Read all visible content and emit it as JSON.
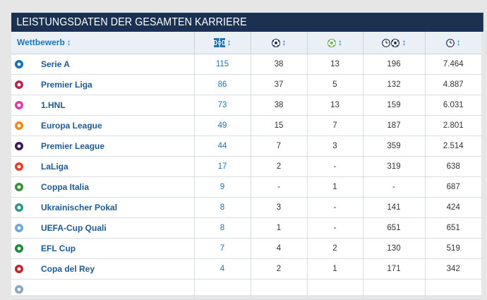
{
  "title": "LEISTUNGSDATEN DER GESAMTEN KARRIERE",
  "header": {
    "competition_label": "Wettbewerb",
    "sort_glyph": "↕",
    "icons": [
      "appearances-icon",
      "goals-icon",
      "assists-icon",
      "minutes-per-goal-icon",
      "minutes-played-icon"
    ]
  },
  "rows": [
    {
      "competition": "Serie A",
      "logo": "serie-a-logo",
      "color": "#1b6fb5",
      "apps": "115",
      "goals": "38",
      "assists": "13",
      "min_per_goal": "196",
      "minutes": "7.464"
    },
    {
      "competition": "Premier Liga",
      "logo": "premier-liga-logo",
      "color": "#b6274e",
      "apps": "86",
      "goals": "37",
      "assists": "5",
      "min_per_goal": "132",
      "minutes": "4.887"
    },
    {
      "competition": "1.HNL",
      "logo": "hnl-logo",
      "color": "#e23ca8",
      "apps": "73",
      "goals": "38",
      "assists": "13",
      "min_per_goal": "159",
      "minutes": "6.031"
    },
    {
      "competition": "Europa League",
      "logo": "europa-league-logo",
      "color": "#f08a1c",
      "apps": "49",
      "goals": "15",
      "assists": "7",
      "min_per_goal": "187",
      "minutes": "2.801"
    },
    {
      "competition": "Premier League",
      "logo": "premier-league-logo",
      "color": "#3d195b",
      "apps": "44",
      "goals": "7",
      "assists": "3",
      "min_per_goal": "359",
      "minutes": "2.514"
    },
    {
      "competition": "LaLiga",
      "logo": "laliga-logo",
      "color": "#ee3d2f",
      "apps": "17",
      "goals": "2",
      "assists": "-",
      "min_per_goal": "319",
      "minutes": "638"
    },
    {
      "competition": "Coppa Italia",
      "logo": "coppa-italia-logo",
      "color": "#3a8f3a",
      "apps": "9",
      "goals": "-",
      "assists": "1",
      "min_per_goal": "-",
      "minutes": "687"
    },
    {
      "competition": "Ukrainischer Pokal",
      "logo": "ukrainischer-pokal-logo",
      "color": "#2f9a8a",
      "apps": "8",
      "goals": "3",
      "assists": "-",
      "min_per_goal": "141",
      "minutes": "424"
    },
    {
      "competition": "UEFA-Cup Quali",
      "logo": "uefa-cup-quali-logo",
      "color": "#6fa7d6",
      "apps": "8",
      "goals": "1",
      "assists": "-",
      "min_per_goal": "651",
      "minutes": "651"
    },
    {
      "competition": "EFL Cup",
      "logo": "efl-cup-logo",
      "color": "#1f8a3a",
      "apps": "7",
      "goals": "4",
      "assists": "2",
      "min_per_goal": "130",
      "minutes": "519"
    },
    {
      "competition": "Copa del Rey",
      "logo": "copa-del-rey-logo",
      "color": "#c0262c",
      "apps": "4",
      "goals": "2",
      "assists": "1",
      "min_per_goal": "171",
      "minutes": "342"
    },
    {
      "competition": "",
      "logo": "partial-row-logo",
      "color": "#8aa4c2",
      "apps": "",
      "goals": "",
      "assists": "",
      "min_per_goal": "",
      "minutes": ""
    }
  ]
}
